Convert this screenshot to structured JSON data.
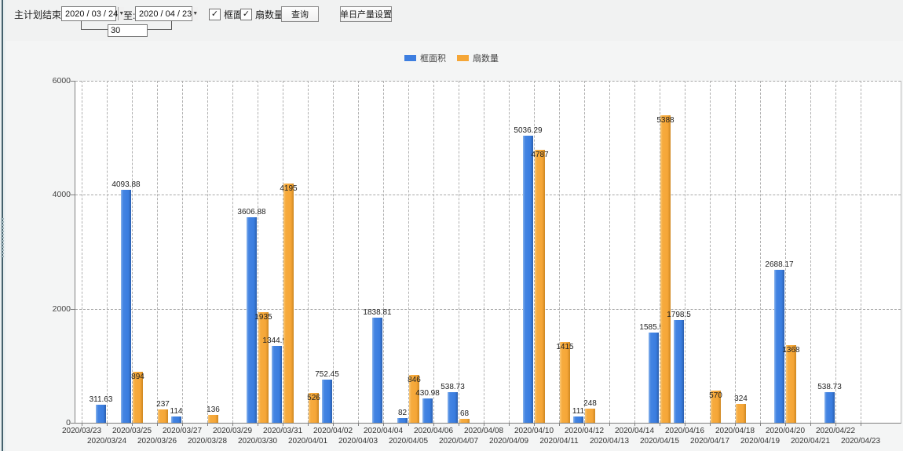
{
  "toolbar": {
    "main_label": "主计划结束时间:",
    "date_from": "2020 / 03 / 24",
    "to_label": "至:",
    "date_to": "2020 / 04 / 23",
    "days_between": "30",
    "checkbox_frame_area": "框面积",
    "checkbox_fan_count": "扇数量",
    "check_glyph": "✓",
    "dropdown_glyph": "▼",
    "query_button": "查询",
    "daily_output_button": "单日产量设置"
  },
  "legend": {
    "items": [
      {
        "label": "框面积",
        "color": "#3d7ee0"
      },
      {
        "label": "扇数量",
        "color": "#f5a637"
      }
    ]
  },
  "colors": {
    "blue": "#3d7ee0",
    "orange": "#f5a637",
    "axis": "#808080",
    "grid": "#a8a8a8"
  },
  "chart_data": {
    "type": "bar",
    "title": "",
    "xlabel": "",
    "ylabel": "",
    "ylim": [
      0,
      6000
    ],
    "yticks": [
      0,
      2000,
      4000,
      6000
    ],
    "grid": "dashed",
    "legend_position": "top-center",
    "categories": [
      "2020/03/23",
      "2020/03/24",
      "2020/03/25",
      "2020/03/26",
      "2020/03/27",
      "2020/03/28",
      "2020/03/29",
      "2020/03/30",
      "2020/03/31",
      "2020/04/01",
      "2020/04/02",
      "2020/04/03",
      "2020/04/04",
      "2020/04/05",
      "2020/04/06",
      "2020/04/07",
      "2020/04/08",
      "2020/04/09",
      "2020/04/10",
      "2020/04/11",
      "2020/04/12",
      "2020/04/13",
      "2020/04/14",
      "2020/04/15",
      "2020/04/16",
      "2020/04/17",
      "2020/04/18",
      "2020/04/19",
      "2020/04/20",
      "2020/04/21",
      "2020/04/22",
      "2020/04/23"
    ],
    "series": [
      {
        "name": "框面积",
        "color": "#3d7ee0",
        "values": [
          null,
          311.63,
          4093.88,
          null,
          114,
          null,
          null,
          3606.88,
          1344.95,
          null,
          752.45,
          null,
          1838.81,
          82,
          430.98,
          538.73,
          null,
          null,
          5036.29,
          null,
          111,
          null,
          null,
          1585.96,
          1798.5,
          null,
          null,
          null,
          2688.17,
          null,
          538.73,
          null
        ]
      },
      {
        "name": "扇数量",
        "color": "#f5a637",
        "values": [
          null,
          null,
          894,
          237,
          null,
          136,
          null,
          1935,
          4195,
          526,
          null,
          null,
          null,
          846,
          null,
          68,
          null,
          null,
          4787,
          1415,
          248,
          null,
          null,
          5388,
          null,
          570,
          324,
          null,
          1368,
          null,
          null,
          null
        ]
      }
    ]
  }
}
